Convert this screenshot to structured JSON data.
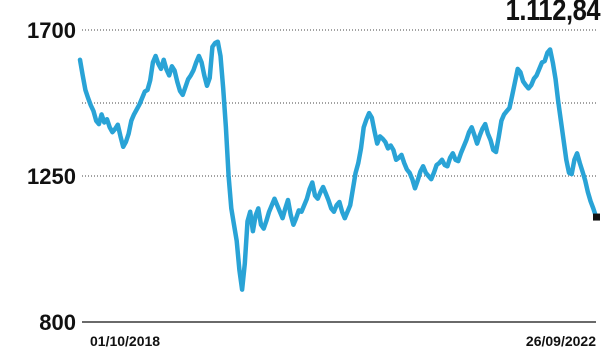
{
  "last_value_label": "1.112,84",
  "colors": {
    "line": "#29a3d6",
    "grid": "#444444",
    "marker": "#111111"
  },
  "chart_data": {
    "type": "line",
    "title": "",
    "xlabel": "",
    "ylabel": "",
    "x_ticks": [
      "01/10/2018",
      "26/09/2022"
    ],
    "y_ticks": [
      800,
      1250,
      1700
    ],
    "ylim": [
      800,
      1700
    ],
    "grid": "horizontal dotted",
    "x_start": "01/10/2018",
    "x_end": "26/09/2022",
    "series": [
      {
        "name": "",
        "values": [
          1608,
          1560,
          1515,
          1490,
          1468,
          1450,
          1420,
          1410,
          1440,
          1415,
          1425,
          1400,
          1385,
          1395,
          1408,
          1372,
          1340,
          1355,
          1380,
          1420,
          1440,
          1455,
          1470,
          1490,
          1510,
          1515,
          1545,
          1600,
          1620,
          1596,
          1580,
          1608,
          1578,
          1560,
          1588,
          1575,
          1540,
          1512,
          1500,
          1524,
          1548,
          1560,
          1576,
          1600,
          1620,
          1600,
          1560,
          1528,
          1552,
          1648,
          1660,
          1664,
          1620,
          1520,
          1400,
          1250,
          1150,
          1100,
          1050,
          960,
          900,
          980,
          1110,
          1140,
          1080,
          1128,
          1150,
          1100,
          1088,
          1112,
          1140,
          1160,
          1180,
          1160,
          1140,
          1120,
          1150,
          1176,
          1130,
          1100,
          1120,
          1144,
          1140,
          1160,
          1180,
          1210,
          1230,
          1190,
          1180,
          1200,
          1216,
          1196,
          1175,
          1150,
          1140,
          1160,
          1170,
          1140,
          1120,
          1140,
          1160,
          1210,
          1260,
          1290,
          1335,
          1400,
          1424,
          1444,
          1430,
          1388,
          1350,
          1372,
          1365,
          1355,
          1335,
          1344,
          1330,
          1300,
          1306,
          1315,
          1290,
          1270,
          1260,
          1240,
          1212,
          1236,
          1264,
          1280,
          1260,
          1250,
          1240,
          1260,
          1284,
          1290,
          1300,
          1284,
          1280,
          1306,
          1320,
          1300,
          1296,
          1320,
          1340,
          1360,
          1385,
          1400,
          1376,
          1350,
          1375,
          1396,
          1410,
          1380,
          1360,
          1330,
          1324,
          1370,
          1420,
          1440,
          1450,
          1460,
          1500,
          1540,
          1580,
          1570,
          1542,
          1530,
          1520,
          1530,
          1550,
          1560,
          1580,
          1600,
          1604,
          1630,
          1640,
          1600,
          1550,
          1480,
          1420,
          1360,
          1300,
          1260,
          1256,
          1300,
          1320,
          1290,
          1264,
          1236,
          1200,
          1172,
          1150,
          1125
        ]
      }
    ],
    "last_value": 1112.84,
    "last_value_label": "1.112,84"
  }
}
